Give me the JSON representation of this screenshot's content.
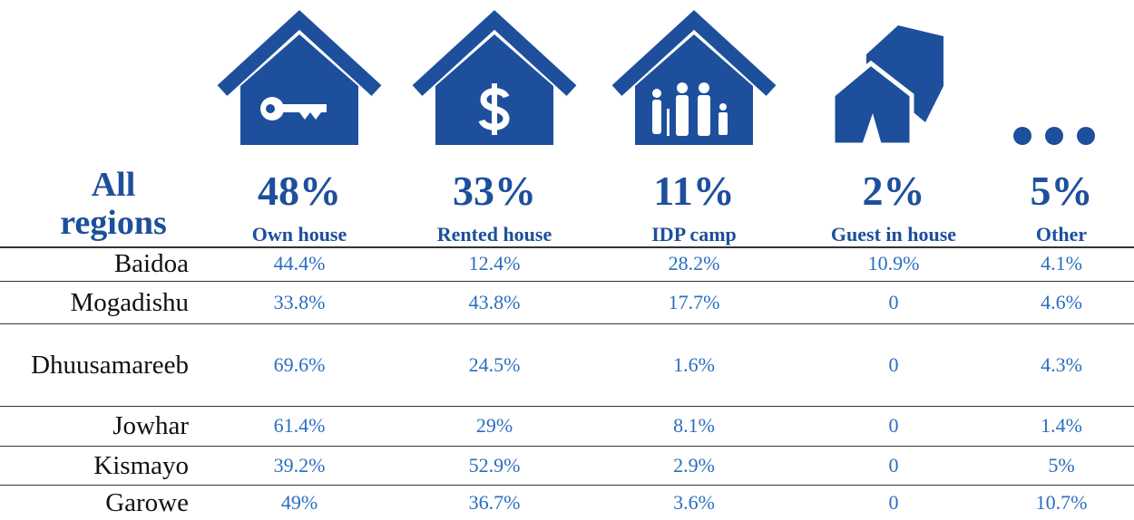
{
  "header": {
    "title": "All regions"
  },
  "columns": [
    {
      "percent": "48%",
      "label": "Own house"
    },
    {
      "percent": "33%",
      "label": "Rented house"
    },
    {
      "percent": "11%",
      "label": "IDP camp"
    },
    {
      "percent": "2%",
      "label": "Guest in house"
    },
    {
      "percent": "5%",
      "label": "Other"
    }
  ],
  "rows": [
    {
      "region": "Baidoa",
      "values": [
        "44.4%",
        "12.4%",
        "28.2%",
        "10.9%",
        "4.1%"
      ]
    },
    {
      "region": "Mogadishu",
      "values": [
        "33.8%",
        "43.8%",
        "17.7%",
        "0",
        "4.6%"
      ]
    },
    {
      "region": "Dhuusamareeb",
      "values": [
        "69.6%",
        "24.5%",
        "1.6%",
        "0",
        "4.3%"
      ]
    },
    {
      "region": "Jowhar",
      "values": [
        "61.4%",
        "29%",
        "8.1%",
        "0",
        "1.4%"
      ]
    },
    {
      "region": "Kismayo",
      "values": [
        "39.2%",
        "52.9%",
        "2.9%",
        "0",
        "5%"
      ]
    },
    {
      "region": "Garowe",
      "values": [
        "49%",
        "36.7%",
        "3.6%",
        "0",
        "10.7%"
      ]
    }
  ]
}
